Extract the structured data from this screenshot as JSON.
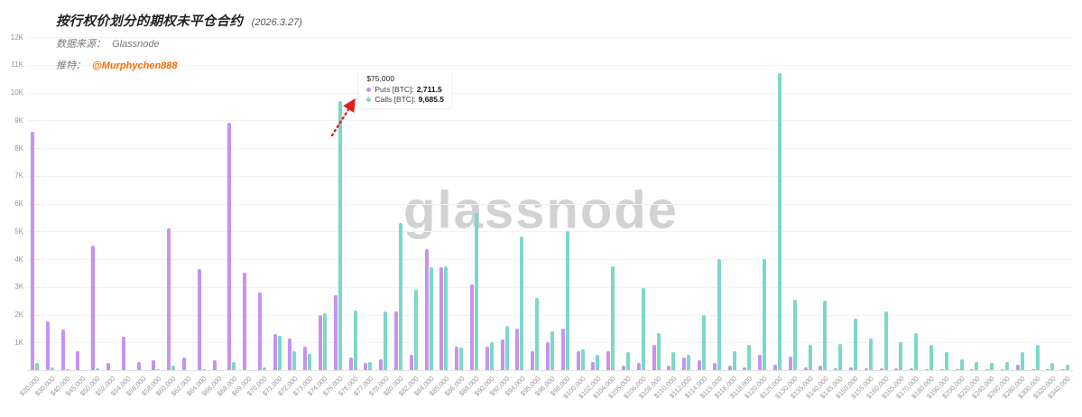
{
  "header": {
    "title": "按行权价划分的期权未平仓合约",
    "date": "(2026.3.27)",
    "source_label": "数据来源：",
    "source_value": "Glassnode",
    "twitter_label": "推特：",
    "twitter_handle": "@Murphychen888"
  },
  "watermark": "glassnode",
  "tooltip": {
    "strike": "$75,000",
    "puts_label": "Puts [BTC]:",
    "puts_value": "2,711.5",
    "calls_label": "Calls [BTC]:",
    "calls_value": "9,685.5"
  },
  "colors": {
    "puts": "#c792f0",
    "calls": "#7cd8c8",
    "twitter": "#ff6a00",
    "arrow": "#e01f1f",
    "grid": "#f3f3f3",
    "axis_text": "#999999",
    "watermark": "#d2d2d2"
  },
  "chart_data": {
    "type": "bar",
    "title": "按行权价划分的期权未平仓合约 (2026.3.27)",
    "xlabel": "",
    "ylabel": "",
    "ylim": [
      0,
      12000
    ],
    "grid": true,
    "legend_position": "none",
    "y_ticks": [
      "1K",
      "2K",
      "3K",
      "4K",
      "5K",
      "6K",
      "7K",
      "8K",
      "9K",
      "10K",
      "11K",
      "12K"
    ],
    "categories": [
      "$20,000",
      "$30,000",
      "$40,000",
      "$45,000",
      "$50,000",
      "$52,000",
      "$54,000",
      "$56,000",
      "$58,000",
      "$60,000",
      "$62,000",
      "$64,000",
      "$66,000",
      "$68,000",
      "$69,000",
      "$70,000",
      "$71,000",
      "$72,000",
      "$73,000",
      "$74,000",
      "$75,000",
      "$76,000",
      "$77,000",
      "$78,000",
      "$80,000",
      "$82,000",
      "$84,000",
      "$85,000",
      "$86,000",
      "$88,000",
      "$90,000",
      "$92,000",
      "$94,000",
      "$95,000",
      "$96,000",
      "$98,000",
      "$100,000",
      "$102,000",
      "$104,000",
      "$105,000",
      "$106,000",
      "$108,000",
      "$110,000",
      "$112,000",
      "$114,000",
      "$115,000",
      "$116,000",
      "$118,000",
      "$120,000",
      "$125,000",
      "$130,000",
      "$135,000",
      "$140,000",
      "$145,000",
      "$150,000",
      "$155,000",
      "$160,000",
      "$165,000",
      "$170,000",
      "$180,000",
      "$190,000",
      "$200,000",
      "$220,000",
      "$240,000",
      "$260,000",
      "$280,000",
      "$300,000",
      "$320,000",
      "$340,000"
    ],
    "series": [
      {
        "name": "Puts [BTC]",
        "color": "#c792f0",
        "values": [
          8600,
          1750,
          1450,
          700,
          4500,
          250,
          1200,
          300,
          350,
          5100,
          450,
          3650,
          350,
          8900,
          3500,
          2800,
          1300,
          1150,
          850,
          2000,
          2711.5,
          450,
          250,
          400,
          2100,
          550,
          4350,
          3700,
          850,
          3100,
          850,
          1100,
          1500,
          700,
          1000,
          1500,
          700,
          300,
          700,
          150,
          250,
          900,
          150,
          450,
          350,
          250,
          150,
          100,
          550,
          200,
          500,
          100,
          150,
          80,
          100,
          60,
          80,
          60,
          60,
          50,
          40,
          30,
          25,
          20,
          20,
          200,
          30,
          20,
          15
        ]
      },
      {
        "name": "Calls [BTC]",
        "color": "#7cd8c8",
        "values": [
          250,
          100,
          50,
          0,
          60,
          0,
          0,
          0,
          30,
          150,
          0,
          50,
          0,
          300,
          0,
          100,
          1250,
          700,
          600,
          2050,
          9685.5,
          2150,
          300,
          2100,
          5300,
          2900,
          3700,
          3750,
          800,
          5650,
          1000,
          1600,
          4800,
          2600,
          1400,
          5000,
          750,
          550,
          3750,
          650,
          2950,
          1350,
          650,
          550,
          2000,
          4000,
          700,
          900,
          4000,
          10700,
          2550,
          900,
          2500,
          950,
          1850,
          1150,
          2100,
          1000,
          1350,
          900,
          650,
          400,
          300,
          250,
          300,
          650,
          900,
          250,
          200
        ]
      }
    ]
  }
}
